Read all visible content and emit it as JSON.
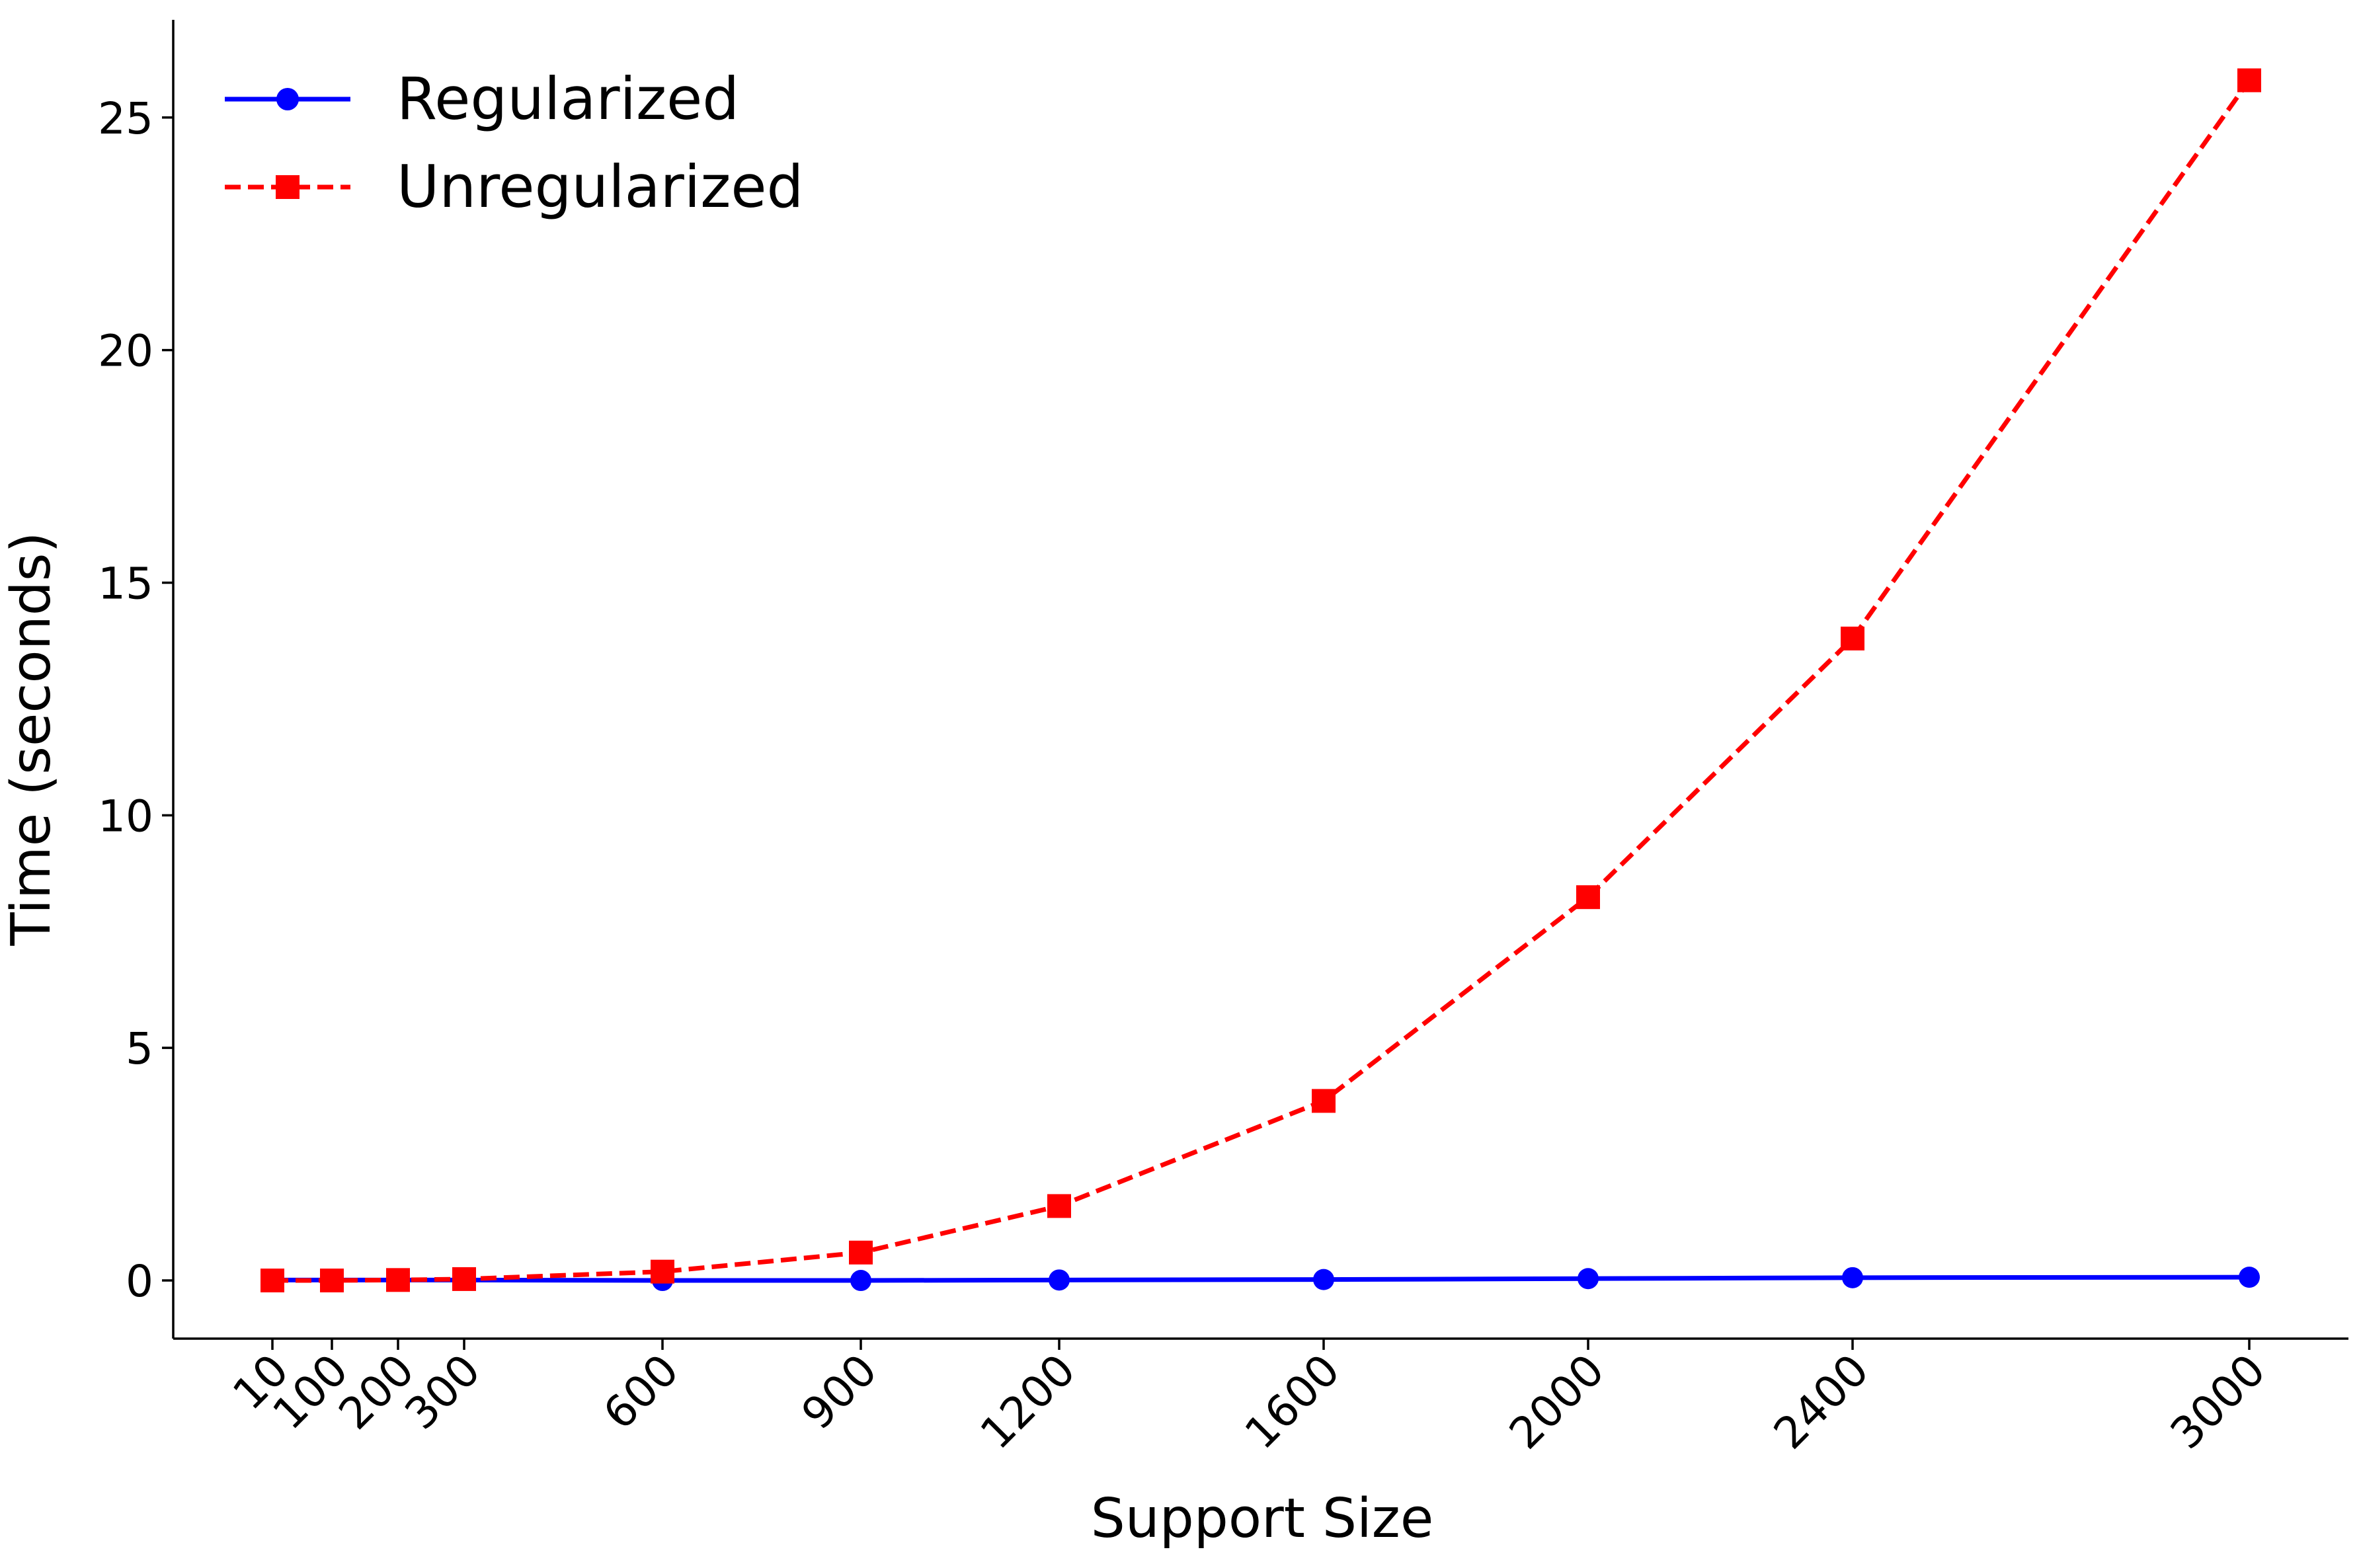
{
  "chart_data": {
    "type": "line",
    "title": "",
    "xlabel": "Support Size",
    "ylabel": "Time (seconds)",
    "x": [
      10,
      100,
      200,
      300,
      600,
      900,
      1200,
      1600,
      2000,
      2400,
      3000
    ],
    "x_tick_labels": [
      "10",
      "100",
      "200",
      "300",
      "600",
      "900",
      "1200",
      "1600",
      "2000",
      "2400",
      "3000"
    ],
    "y_ticks": [
      0,
      5,
      10,
      15,
      20,
      25
    ],
    "y_tick_labels": [
      "0",
      "5",
      "10",
      "15",
      "20",
      "25"
    ],
    "xlim": [
      -140,
      3150
    ],
    "ylim": [
      -1.25,
      27.1
    ],
    "grid": false,
    "legend_position": "top-left",
    "series": [
      {
        "name": "Regularized",
        "color": "#0000ff",
        "line_style": "solid",
        "marker": "circle",
        "values": [
          0.01,
          0.01,
          0.01,
          0.01,
          0.0,
          0.0,
          0.01,
          0.02,
          0.04,
          0.06,
          0.07
        ]
      },
      {
        "name": "Unregularized",
        "color": "#ff0000",
        "line_style": "dashed",
        "marker": "square",
        "values": [
          0.0,
          0.0,
          0.01,
          0.03,
          0.19,
          0.6,
          1.6,
          3.86,
          8.24,
          13.8,
          25.8
        ]
      }
    ]
  }
}
